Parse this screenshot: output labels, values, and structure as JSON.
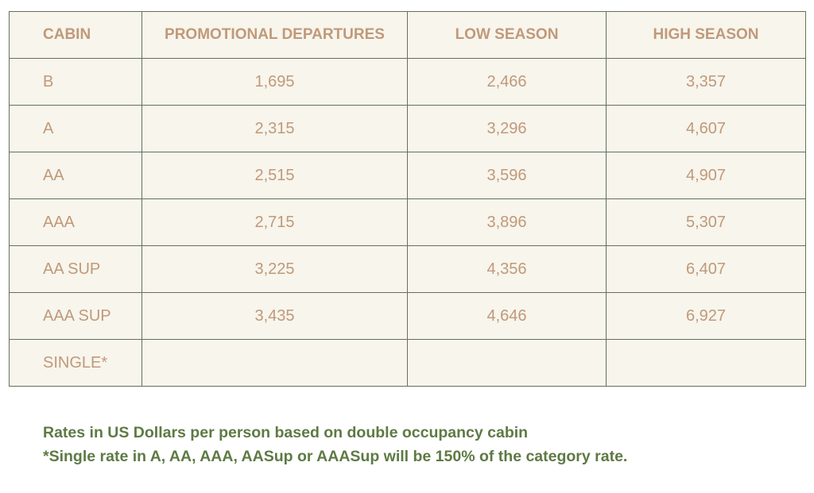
{
  "table": {
    "header": [
      "CABIN",
      "PROMOTIONAL DEPARTURES",
      "LOW SEASON",
      "HIGH SEASON"
    ],
    "rows": [
      [
        "B",
        "1,695",
        "2,466",
        "3,357"
      ],
      [
        "A",
        "2,315",
        "3,296",
        "4,607"
      ],
      [
        "AA",
        "2,515",
        "3,596",
        "4,907"
      ],
      [
        "AAA",
        "2,715",
        "3,896",
        "5,307"
      ],
      [
        "AA SUP",
        "3,225",
        "4,356",
        "6,407"
      ],
      [
        "AAA SUP",
        "3,435",
        "4,646",
        "6,927"
      ],
      [
        "SINGLE*"
      ]
    ]
  },
  "notes": [
    "Rates in US Dollars per person based on double occupancy cabin",
    "*Single rate in A, AA, AAA, AASup or AAASup will be 150% of the category rate."
  ]
}
